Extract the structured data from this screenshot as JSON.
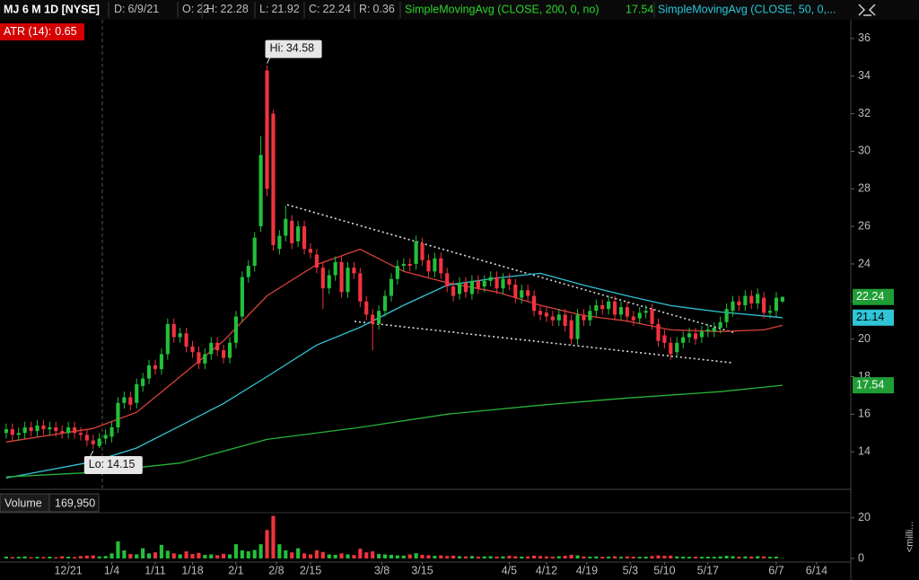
{
  "header": {
    "symbol": "MJ 6 M 1D [NYSE]",
    "date_label": "D:",
    "date": "6/9/21",
    "open_label": "O:",
    "high_label": "H:",
    "low_label": "L:",
    "close_label": "C:",
    "range_label": "R:",
    "range": 0.36
  },
  "chart_data": {
    "type": "candlestick",
    "xlim": [
      -1,
      136
    ],
    "xticks": [
      {
        "value": 10,
        "label": "12/21"
      },
      {
        "value": 17,
        "label": "1/4"
      },
      {
        "value": 24,
        "label": "1/11"
      },
      {
        "value": 30,
        "label": "1/18"
      },
      {
        "value": 37,
        "label": "2/1"
      },
      {
        "value": 43.5,
        "label": "2/8"
      },
      {
        "value": 49,
        "label": "2/15"
      },
      {
        "value": 60.5,
        "label": "3/8"
      },
      {
        "value": 67,
        "label": "3/15"
      },
      {
        "value": 81,
        "label": "4/5"
      },
      {
        "value": 87,
        "label": "4/12"
      },
      {
        "value": 93.5,
        "label": "4/19"
      },
      {
        "value": 100.5,
        "label": "5/3"
      },
      {
        "value": 106,
        "label": "5/10"
      },
      {
        "value": 113,
        "label": "5/17"
      },
      {
        "value": 124,
        "label": "6/7"
      },
      {
        "value": 130.5,
        "label": "6/14"
      }
    ],
    "ylim": [
      12,
      37
    ],
    "yticks": [
      14,
      16,
      18,
      20,
      22,
      24,
      26,
      28,
      30,
      32,
      34,
      36
    ],
    "up_color": "#22c03b",
    "down_color": "#f2333f",
    "open": [
      15.0,
      15.2,
      14.9,
      15.0,
      15.3,
      15.1,
      15.4,
      15.2,
      15.3,
      15.1,
      15.0,
      15.3,
      15.0,
      14.9,
      14.6,
      14.3,
      14.7,
      14.8,
      15.3,
      16.6,
      16.9,
      16.6,
      17.5,
      17.9,
      18.6,
      18.4,
      19.2,
      20.8,
      20.1,
      20.3,
      19.6,
      19.3,
      18.7,
      19.2,
      19.8,
      19.4,
      19.0,
      19.8,
      21.2,
      23.3,
      23.9,
      26.0,
      34.3,
      32.0,
      24.8,
      25.5,
      26.3,
      25.2,
      26.0,
      24.8,
      24.5,
      23.8,
      22.7,
      23.4,
      24.1,
      22.5,
      23.8,
      23.5,
      22.0,
      21.3,
      20.8,
      21.5,
      22.3,
      23.2,
      23.9,
      24.0,
      24.0,
      25.1,
      24.2,
      23.6,
      24.3,
      23.5,
      22.8,
      22.4,
      23.0,
      22.4,
      23.1,
      22.8,
      23.1,
      23.3,
      22.7,
      23.2,
      22.9,
      22.2,
      22.6,
      22.3,
      21.5,
      21.4,
      21.2,
      21.0,
      21.3,
      21.0,
      20.0,
      21.3,
      21.0,
      21.5,
      21.8,
      21.6,
      22.0,
      21.3,
      21.7,
      21.2,
      21.1,
      21.4,
      21.6,
      20.8,
      20.2,
      19.8,
      19.3,
      19.8,
      20.1,
      20.3,
      20.1,
      20.4,
      20.4,
      20.6,
      20.9,
      21.5,
      22.0,
      21.8,
      22.3,
      21.9,
      22.2,
      21.4,
      21.5,
      22
    ],
    "high": [
      15.5,
      15.5,
      15.3,
      15.6,
      15.6,
      15.7,
      15.7,
      15.6,
      15.6,
      15.4,
      15.6,
      15.6,
      15.3,
      15.2,
      14.9,
      15.0,
      15.2,
      15.6,
      16.9,
      17.2,
      17.2,
      17.9,
      18.2,
      18.9,
      18.9,
      19.5,
      21.1,
      21.1,
      20.6,
      20.6,
      19.9,
      19.6,
      19.5,
      20.1,
      20.1,
      19.7,
      20.1,
      21.5,
      23.6,
      24.2,
      25.7,
      30.8,
      34.58,
      32.2,
      25.8,
      27.1,
      26.6,
      26.3,
      26.3,
      25.1,
      24.8,
      24.1,
      23.7,
      24.4,
      24.4,
      24.1,
      24.1,
      23.8,
      22.3,
      21.6,
      21.8,
      22.6,
      23.5,
      24.2,
      24.3,
      24.3,
      25.5,
      25.4,
      24.5,
      24.6,
      24.6,
      23.8,
      23.1,
      23.3,
      23.3,
      23.4,
      23.4,
      23.4,
      23.6,
      23.6,
      23.5,
      23.5,
      23.2,
      22.9,
      22.9,
      22.6,
      21.8,
      21.7,
      21.5,
      21.6,
      21.6,
      21.3,
      21.6,
      21.6,
      21.8,
      22.1,
      22.1,
      22.3,
      22.3,
      22.0,
      22.0,
      21.5,
      21.7,
      21.8,
      21.9,
      21.1,
      20.5,
      20.1,
      20.1,
      20.4,
      20.6,
      20.6,
      20.7,
      20.8,
      20.9,
      21.2,
      21.9,
      22.3,
      22.3,
      22.6,
      22.6,
      22.7,
      22.5,
      21.8,
      22.5,
      22.28
    ],
    "low": [
      14.7,
      14.6,
      14.6,
      14.7,
      14.8,
      14.8,
      14.9,
      14.9,
      14.8,
      14.7,
      14.7,
      14.7,
      14.6,
      14.3,
      14.15,
      14.2,
      14.4,
      14.5,
      15.0,
      16.3,
      16.2,
      16.3,
      17.2,
      17.6,
      18.1,
      18.1,
      18.9,
      19.8,
      19.8,
      19.3,
      19.0,
      18.4,
      18.4,
      18.9,
      19.1,
      18.7,
      18.7,
      19.5,
      20.9,
      23.0,
      23.6,
      25.7,
      27.6,
      24.7,
      24.5,
      25.2,
      24.8,
      24.9,
      24.5,
      24.3,
      23.5,
      21.6,
      22.4,
      23.1,
      22.2,
      22.2,
      23.2,
      21.7,
      21.0,
      19.4,
      20.5,
      21.2,
      22.0,
      22.9,
      23.6,
      23.6,
      23.7,
      23.9,
      23.3,
      23.3,
      23.2,
      22.5,
      22.0,
      22.1,
      22.2,
      22.1,
      22.4,
      22.5,
      22.8,
      22.4,
      22.4,
      22.6,
      21.9,
      21.9,
      22.0,
      21.2,
      21.0,
      20.9,
      20.7,
      20.7,
      20.4,
      19.7,
      19.7,
      20.7,
      20.7,
      21.2,
      21.3,
      21.3,
      21.0,
      21.0,
      20.9,
      20.7,
      20.8,
      21.1,
      20.5,
      19.6,
      19.5,
      18.9,
      19.0,
      19.5,
      19.8,
      19.7,
      19.8,
      20.1,
      20.1,
      20.3,
      20.6,
      21.2,
      21.5,
      21.5,
      21.6,
      21.6,
      21.1,
      21.1,
      21.2,
      21.92
    ],
    "close": [
      15.2,
      14.9,
      15.0,
      15.3,
      15.1,
      15.4,
      15.2,
      15.3,
      15.1,
      15.0,
      15.3,
      15.0,
      14.9,
      14.6,
      14.4,
      14.7,
      14.9,
      15.3,
      16.6,
      16.9,
      16.5,
      17.6,
      17.9,
      18.6,
      18.4,
      19.2,
      20.8,
      20.1,
      20.3,
      19.6,
      19.3,
      18.7,
      19.2,
      19.8,
      19.4,
      19.0,
      19.8,
      21.2,
      23.3,
      23.9,
      25.4,
      29.8,
      28.0,
      25.0,
      25.5,
      26.4,
      25.1,
      26.0,
      24.8,
      24.6,
      23.8,
      22.7,
      23.4,
      24.1,
      22.5,
      23.8,
      23.5,
      22.0,
      21.3,
      20.8,
      21.5,
      22.3,
      23.2,
      23.9,
      24.0,
      23.9,
      25.2,
      24.2,
      23.6,
      24.3,
      23.5,
      22.8,
      22.3,
      23.0,
      22.5,
      23.1,
      22.7,
      23.1,
      23.3,
      22.7,
      23.2,
      22.9,
      22.2,
      22.6,
      22.3,
      21.5,
      21.3,
      21.2,
      21.0,
      21.3,
      20.7,
      20.0,
      21.3,
      21.0,
      21.5,
      21.8,
      21.6,
      22.0,
      21.3,
      21.7,
      21.2,
      21.0,
      21.4,
      21.5,
      20.8,
      19.9,
      19.8,
      19.2,
      19.8,
      20.1,
      20.3,
      20.0,
      20.4,
      20.5,
      20.6,
      20.9,
      21.6,
      22.0,
      21.8,
      22.3,
      21.9,
      22.4,
      21.4,
      21.5,
      22.2,
      22.24
    ],
    "moving_averages": [
      {
        "color": "#d9413b",
        "x": [
          0,
          14,
          21,
          28,
          35,
          42,
          50,
          57,
          64,
          71,
          79,
          86,
          93,
          100,
          107,
          115,
          122,
          125
        ],
        "values": [
          14.52,
          15.24,
          16.1,
          18.0,
          19.9,
          22.3,
          23.97,
          24.78,
          23.6,
          23.0,
          22.5,
          21.8,
          21.25,
          20.96,
          20.49,
          20.4,
          20.49,
          20.73
        ]
      },
      {
        "name": "SimpleMovingAvg (CLOSE, 50, 0,...",
        "color": "#2fc4d6",
        "x": [
          0,
          14,
          21,
          28,
          35,
          42,
          50,
          57,
          64,
          71,
          79,
          86,
          93,
          100,
          107,
          115,
          125
        ],
        "values": [
          12.6,
          13.47,
          14.2,
          15.38,
          16.57,
          18.0,
          19.68,
          20.63,
          21.8,
          22.87,
          23.25,
          23.5,
          22.87,
          22.3,
          21.78,
          21.44,
          21.14
        ]
      },
      {
        "name": "SimpleMovingAvg (CLOSE, 200, 0, no)",
        "color": "#27b23a",
        "x": [
          0,
          14,
          28,
          42,
          57,
          71,
          86,
          100,
          115,
          125
        ],
        "values": [
          12.66,
          12.9,
          13.4,
          14.66,
          15.3,
          16.0,
          16.48,
          16.86,
          17.2,
          17.54
        ]
      }
    ],
    "annotations": {
      "hi_label": "Hi:",
      "lo_label": "Lo:",
      "atr_label": "ATR (14):",
      "atr": 0.65
    },
    "volume_panel": {
      "title": "Volume",
      "last": "169,950",
      "units": "<milli...",
      "ylim": [
        0,
        23
      ],
      "yticks": [
        0,
        20
      ]
    },
    "volume": [
      0.9,
      0.7,
      0.8,
      1.0,
      0.6,
      0.8,
      0.7,
      0.9,
      0.6,
      1.1,
      0.9,
      0.7,
      1.2,
      1.4,
      1.5,
      1.0,
      1.2,
      2.5,
      8.4,
      4.0,
      2.2,
      2.0,
      5.0,
      2.5,
      3.0,
      6.7,
      3.8,
      2.5,
      2.0,
      3.5,
      2.2,
      2.8,
      1.8,
      2.0,
      1.6,
      2.3,
      2.0,
      7.0,
      4.0,
      3.5,
      4.2,
      7.0,
      14.0,
      21.0,
      7.0,
      4.0,
      3.0,
      5.0,
      2.5,
      2.0,
      4.0,
      3.2,
      2.0,
      1.8,
      2.5,
      2.0,
      1.7,
      4.8,
      3.0,
      3.5,
      2.2,
      2.0,
      1.8,
      1.5,
      1.4,
      2.0,
      2.6,
      1.8,
      1.6,
      1.3,
      1.5,
      1.2,
      1.4,
      1.1,
      1.0,
      1.2,
      0.9,
      1.0,
      1.1,
      0.9,
      1.0,
      1.3,
      1.1,
      0.9,
      1.0,
      1.4,
      1.2,
      1.0,
      0.9,
      1.1,
      1.3,
      1.8,
      1.5,
      1.0,
      0.9,
      1.0,
      0.8,
      0.9,
      1.1,
      0.8,
      1.0,
      0.9,
      0.8,
      0.9,
      1.2,
      1.5,
      1.3,
      1.4,
      1.0,
      0.9,
      0.8,
      0.9,
      0.8,
      0.9,
      0.8,
      1.0,
      1.3,
      1.1,
      0.9,
      1.0,
      0.9,
      1.1,
      1.0,
      0.8,
      0.9,
      0.17
    ]
  }
}
